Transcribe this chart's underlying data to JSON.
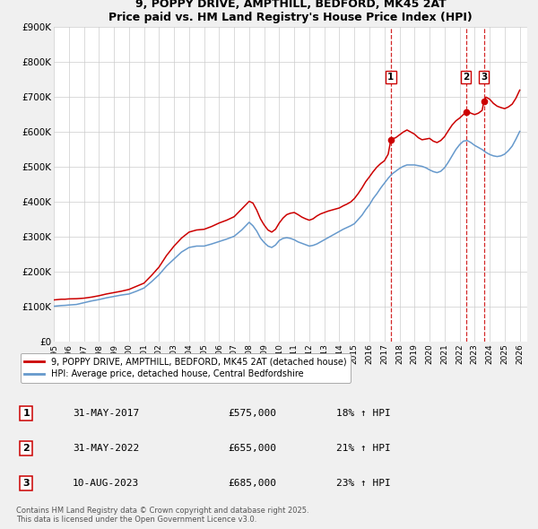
{
  "title": "9, POPPY DRIVE, AMPTHILL, BEDFORD, MK45 2AT",
  "subtitle": "Price paid vs. HM Land Registry's House Price Index (HPI)",
  "ylim": [
    0,
    900000
  ],
  "yticks": [
    0,
    100000,
    200000,
    300000,
    400000,
    500000,
    600000,
    700000,
    800000,
    900000
  ],
  "ytick_labels": [
    "£0",
    "£100K",
    "£200K",
    "£300K",
    "£400K",
    "£500K",
    "£600K",
    "£700K",
    "£800K",
    "£900K"
  ],
  "xlim_start": 1995.0,
  "xlim_end": 2026.5,
  "bg_color": "#f0f0f0",
  "plot_bg_color": "#ffffff",
  "grid_color": "#cccccc",
  "red_line_color": "#cc0000",
  "blue_line_color": "#6699cc",
  "marker_color": "#cc0000",
  "dashed_line_color": "#cc0000",
  "transaction_labels": [
    "1",
    "2",
    "3"
  ],
  "transaction_dates": [
    2017.42,
    2022.42,
    2023.61
  ],
  "transaction_prices": [
    575000,
    655000,
    685000
  ],
  "transaction_date_strs": [
    "31-MAY-2017",
    "31-MAY-2022",
    "10-AUG-2023"
  ],
  "transaction_price_strs": [
    "£575,000",
    "£655,000",
    "£685,000"
  ],
  "transaction_hpi_strs": [
    "18% ↑ HPI",
    "21% ↑ HPI",
    "23% ↑ HPI"
  ],
  "legend_label_red": "9, POPPY DRIVE, AMPTHILL, BEDFORD, MK45 2AT (detached house)",
  "legend_label_blue": "HPI: Average price, detached house, Central Bedfordshire",
  "footnote": "Contains HM Land Registry data © Crown copyright and database right 2025.\nThis data is licensed under the Open Government Licence v3.0.",
  "red_series": [
    [
      1995.0,
      118000
    ],
    [
      1995.25,
      119000
    ],
    [
      1995.5,
      120000
    ],
    [
      1995.75,
      120000
    ],
    [
      1996.0,
      121000
    ],
    [
      1996.5,
      121500
    ],
    [
      1997.0,
      123000
    ],
    [
      1997.5,
      126000
    ],
    [
      1998.0,
      130000
    ],
    [
      1998.5,
      135000
    ],
    [
      1999.0,
      139000
    ],
    [
      1999.5,
      143000
    ],
    [
      2000.0,
      148000
    ],
    [
      2000.5,
      157000
    ],
    [
      2001.0,
      166000
    ],
    [
      2001.5,
      188000
    ],
    [
      2002.0,
      212000
    ],
    [
      2002.5,
      245000
    ],
    [
      2003.0,
      272000
    ],
    [
      2003.5,
      295000
    ],
    [
      2004.0,
      312000
    ],
    [
      2004.5,
      318000
    ],
    [
      2005.0,
      320000
    ],
    [
      2005.5,
      328000
    ],
    [
      2006.0,
      338000
    ],
    [
      2006.5,
      346000
    ],
    [
      2007.0,
      356000
    ],
    [
      2007.5,
      378000
    ],
    [
      2008.0,
      400000
    ],
    [
      2008.25,
      395000
    ],
    [
      2008.5,
      375000
    ],
    [
      2008.75,
      350000
    ],
    [
      2009.0,
      332000
    ],
    [
      2009.25,
      318000
    ],
    [
      2009.5,
      312000
    ],
    [
      2009.75,
      320000
    ],
    [
      2010.0,
      338000
    ],
    [
      2010.25,
      352000
    ],
    [
      2010.5,
      362000
    ],
    [
      2010.75,
      366000
    ],
    [
      2011.0,
      368000
    ],
    [
      2011.25,
      362000
    ],
    [
      2011.5,
      355000
    ],
    [
      2011.75,
      350000
    ],
    [
      2012.0,
      346000
    ],
    [
      2012.25,
      350000
    ],
    [
      2012.5,
      358000
    ],
    [
      2012.75,
      364000
    ],
    [
      2013.0,
      368000
    ],
    [
      2013.25,
      372000
    ],
    [
      2013.5,
      375000
    ],
    [
      2013.75,
      378000
    ],
    [
      2014.0,
      381000
    ],
    [
      2014.25,
      387000
    ],
    [
      2014.5,
      392000
    ],
    [
      2014.75,
      398000
    ],
    [
      2015.0,
      408000
    ],
    [
      2015.25,
      422000
    ],
    [
      2015.5,
      438000
    ],
    [
      2015.75,
      456000
    ],
    [
      2016.0,
      470000
    ],
    [
      2016.25,
      485000
    ],
    [
      2016.5,
      498000
    ],
    [
      2016.75,
      508000
    ],
    [
      2017.0,
      516000
    ],
    [
      2017.25,
      535000
    ],
    [
      2017.42,
      575000
    ],
    [
      2017.5,
      578000
    ],
    [
      2017.75,
      582000
    ],
    [
      2018.0,
      590000
    ],
    [
      2018.25,
      598000
    ],
    [
      2018.5,
      604000
    ],
    [
      2018.75,
      598000
    ],
    [
      2019.0,
      592000
    ],
    [
      2019.25,
      582000
    ],
    [
      2019.5,
      576000
    ],
    [
      2019.75,
      578000
    ],
    [
      2020.0,
      580000
    ],
    [
      2020.25,
      572000
    ],
    [
      2020.5,
      568000
    ],
    [
      2020.75,
      574000
    ],
    [
      2021.0,
      585000
    ],
    [
      2021.25,
      602000
    ],
    [
      2021.5,
      618000
    ],
    [
      2021.75,
      630000
    ],
    [
      2022.0,
      638000
    ],
    [
      2022.25,
      648000
    ],
    [
      2022.42,
      655000
    ],
    [
      2022.5,
      658000
    ],
    [
      2022.75,
      652000
    ],
    [
      2023.0,
      648000
    ],
    [
      2023.25,
      652000
    ],
    [
      2023.5,
      660000
    ],
    [
      2023.61,
      685000
    ],
    [
      2023.75,
      698000
    ],
    [
      2024.0,
      692000
    ],
    [
      2024.25,
      680000
    ],
    [
      2024.5,
      672000
    ],
    [
      2024.75,
      668000
    ],
    [
      2025.0,
      665000
    ],
    [
      2025.25,
      670000
    ],
    [
      2025.5,
      678000
    ],
    [
      2025.75,
      695000
    ],
    [
      2026.0,
      718000
    ]
  ],
  "blue_series": [
    [
      1995.0,
      100000
    ],
    [
      1995.25,
      101000
    ],
    [
      1995.5,
      102000
    ],
    [
      1995.75,
      102500
    ],
    [
      1996.0,
      103500
    ],
    [
      1996.5,
      105000
    ],
    [
      1997.0,
      110000
    ],
    [
      1997.5,
      115000
    ],
    [
      1998.0,
      119000
    ],
    [
      1998.5,
      124000
    ],
    [
      1999.0,
      128000
    ],
    [
      1999.5,
      132000
    ],
    [
      2000.0,
      135000
    ],
    [
      2000.5,
      143000
    ],
    [
      2001.0,
      152000
    ],
    [
      2001.5,
      170000
    ],
    [
      2002.0,
      190000
    ],
    [
      2002.5,
      215000
    ],
    [
      2003.0,
      235000
    ],
    [
      2003.5,
      255000
    ],
    [
      2004.0,
      268000
    ],
    [
      2004.5,
      272000
    ],
    [
      2005.0,
      272000
    ],
    [
      2005.5,
      278000
    ],
    [
      2006.0,
      285000
    ],
    [
      2006.5,
      292000
    ],
    [
      2007.0,
      300000
    ],
    [
      2007.5,
      318000
    ],
    [
      2008.0,
      340000
    ],
    [
      2008.25,
      330000
    ],
    [
      2008.5,
      315000
    ],
    [
      2008.75,
      295000
    ],
    [
      2009.0,
      282000
    ],
    [
      2009.25,
      272000
    ],
    [
      2009.5,
      268000
    ],
    [
      2009.75,
      275000
    ],
    [
      2010.0,
      288000
    ],
    [
      2010.25,
      294000
    ],
    [
      2010.5,
      296000
    ],
    [
      2010.75,
      294000
    ],
    [
      2011.0,
      290000
    ],
    [
      2011.25,
      284000
    ],
    [
      2011.5,
      280000
    ],
    [
      2011.75,
      276000
    ],
    [
      2012.0,
      272000
    ],
    [
      2012.25,
      274000
    ],
    [
      2012.5,
      278000
    ],
    [
      2012.75,
      284000
    ],
    [
      2013.0,
      290000
    ],
    [
      2013.25,
      296000
    ],
    [
      2013.5,
      302000
    ],
    [
      2013.75,
      308000
    ],
    [
      2014.0,
      314000
    ],
    [
      2014.25,
      320000
    ],
    [
      2014.5,
      325000
    ],
    [
      2014.75,
      330000
    ],
    [
      2015.0,
      336000
    ],
    [
      2015.25,
      348000
    ],
    [
      2015.5,
      360000
    ],
    [
      2015.75,
      376000
    ],
    [
      2016.0,
      390000
    ],
    [
      2016.25,
      408000
    ],
    [
      2016.5,
      422000
    ],
    [
      2016.75,
      438000
    ],
    [
      2017.0,
      452000
    ],
    [
      2017.25,
      466000
    ],
    [
      2017.5,
      478000
    ],
    [
      2017.75,
      486000
    ],
    [
      2018.0,
      494000
    ],
    [
      2018.25,
      500000
    ],
    [
      2018.5,
      504000
    ],
    [
      2018.75,
      504000
    ],
    [
      2019.0,
      504000
    ],
    [
      2019.25,
      502000
    ],
    [
      2019.5,
      500000
    ],
    [
      2019.75,
      496000
    ],
    [
      2020.0,
      490000
    ],
    [
      2020.25,
      485000
    ],
    [
      2020.5,
      482000
    ],
    [
      2020.75,
      486000
    ],
    [
      2021.0,
      496000
    ],
    [
      2021.25,
      512000
    ],
    [
      2021.5,
      530000
    ],
    [
      2021.75,
      548000
    ],
    [
      2022.0,
      562000
    ],
    [
      2022.25,
      572000
    ],
    [
      2022.5,
      574000
    ],
    [
      2022.75,
      568000
    ],
    [
      2023.0,
      560000
    ],
    [
      2023.25,
      554000
    ],
    [
      2023.5,
      548000
    ],
    [
      2023.75,
      540000
    ],
    [
      2024.0,
      534000
    ],
    [
      2024.25,
      530000
    ],
    [
      2024.5,
      528000
    ],
    [
      2024.75,
      530000
    ],
    [
      2025.0,
      535000
    ],
    [
      2025.25,
      545000
    ],
    [
      2025.5,
      558000
    ],
    [
      2025.75,
      578000
    ],
    [
      2026.0,
      600000
    ]
  ]
}
